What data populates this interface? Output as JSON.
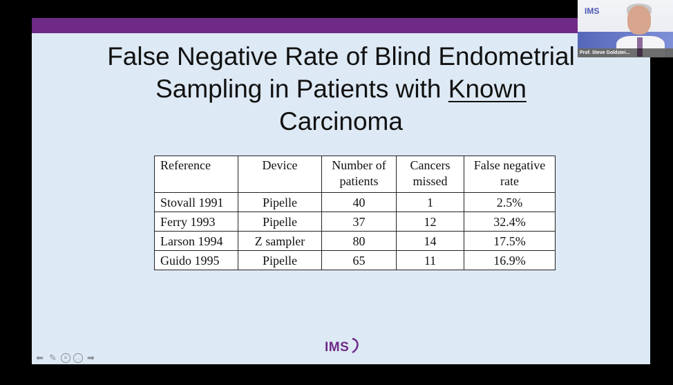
{
  "slide": {
    "title_line1": "False Negative Rate of Blind Endometrial",
    "title_line2_prefix": "Sampling in Patients with ",
    "title_line2_underlined": "Known",
    "title_line3": "Carcinoma",
    "table": {
      "headers": [
        "Reference",
        "Device",
        "Number of patients",
        "Cancers missed",
        "False negative rate"
      ],
      "header_lines": [
        [
          "Reference"
        ],
        [
          "Device"
        ],
        [
          "Number of",
          "patients"
        ],
        [
          "Cancers",
          "missed"
        ],
        [
          "False negative",
          "rate"
        ]
      ],
      "rows": [
        [
          "Stovall 1991",
          "Pipelle",
          "40",
          "1",
          "2.5%"
        ],
        [
          "Ferry 1993",
          "Pipelle",
          "37",
          "12",
          "32.4%"
        ],
        [
          "Larson 1994",
          "Z sampler",
          "80",
          "14",
          "17.5%"
        ],
        [
          "Guido 1995",
          "Pipelle",
          "65",
          "11",
          "16.9%"
        ]
      ]
    },
    "footer_logo": "IMS"
  },
  "webcam": {
    "logo": "IMS",
    "name_label": "Prof. Steve Goldstei..."
  },
  "nav_icons": [
    "prev-arrow-icon",
    "pen-icon",
    "subtitle-icon",
    "more-icon",
    "next-arrow-icon"
  ],
  "colors": {
    "accent": "#6e2a86",
    "slide_bg": "#dde9f4"
  }
}
